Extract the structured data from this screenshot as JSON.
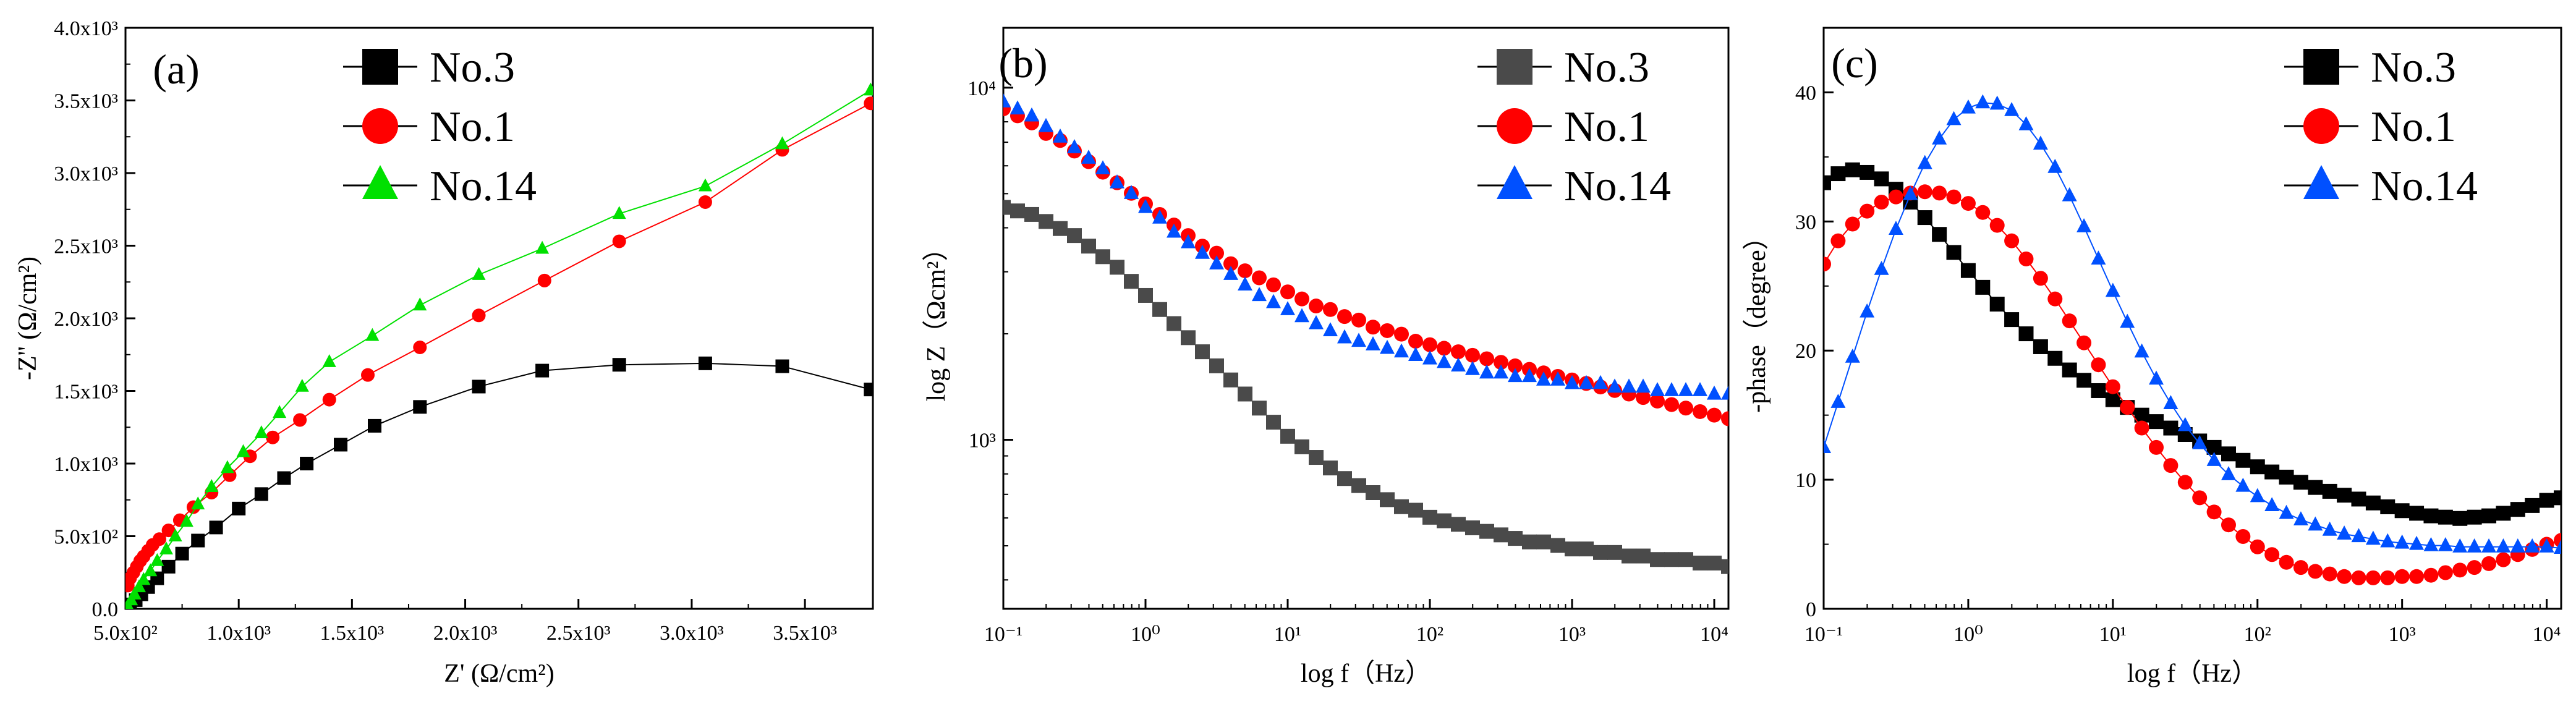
{
  "colors": {
    "No.3": "#000000",
    "No.3_b": "#4a4a4a",
    "No.1": "#ff0000",
    "No.14": "#00e000",
    "No.14_b": "#0050ff"
  },
  "chart_data": [
    {
      "panel": "(a)",
      "type": "line",
      "xlabel": "Z' (Ω/cm²)",
      "ylabel": "-Z'' (Ω/cm²)",
      "xlim": [
        500,
        3800
      ],
      "ylim": [
        0,
        4000
      ],
      "xscale": "linear",
      "yscale": "linear",
      "xticks": [
        500,
        1000,
        1500,
        2000,
        2500,
        3000,
        3500
      ],
      "xtick_labels": [
        "5.0x10²",
        "1.0x10³",
        "1.5x10³",
        "2.0x10³",
        "2.5x10³",
        "3.0x10³",
        "3.5x10³"
      ],
      "yticks": [
        0,
        500,
        1000,
        1500,
        2000,
        2500,
        3000,
        3500,
        4000
      ],
      "ytick_labels": [
        "0.0",
        "5.0x10²",
        "1.0x10³",
        "1.5x10³",
        "2.0x10³",
        "2.5x10³",
        "3.0x10³",
        "3.5x10³",
        "4.0x10³"
      ],
      "legend": [
        "No.3",
        "No.1",
        "No.14"
      ],
      "series": [
        {
          "name": "No.3",
          "marker": "square",
          "color": "#000000",
          "points": [
            [
              520,
              30
            ],
            [
              545,
              60
            ],
            [
              570,
              100
            ],
            [
              600,
              150
            ],
            [
              640,
              210
            ],
            [
              690,
              290
            ],
            [
              750,
              380
            ],
            [
              820,
              470
            ],
            [
              900,
              560
            ],
            [
              1000,
              690
            ],
            [
              1100,
              790
            ],
            [
              1200,
              900
            ],
            [
              1300,
              1000
            ],
            [
              1450,
              1130
            ],
            [
              1600,
              1260
            ],
            [
              1800,
              1390
            ],
            [
              2060,
              1530
            ],
            [
              2340,
              1640
            ],
            [
              2680,
              1680
            ],
            [
              3060,
              1690
            ],
            [
              3400,
              1670
            ],
            [
              3790,
              1510
            ]
          ]
        },
        {
          "name": "No.1",
          "marker": "circle",
          "color": "#ff0000",
          "points": [
            [
              510,
              160
            ],
            [
              520,
              210
            ],
            [
              535,
              250
            ],
            [
              550,
              290
            ],
            [
              565,
              330
            ],
            [
              580,
              360
            ],
            [
              600,
              400
            ],
            [
              620,
              440
            ],
            [
              650,
              480
            ],
            [
              690,
              540
            ],
            [
              740,
              610
            ],
            [
              800,
              700
            ],
            [
              880,
              800
            ],
            [
              960,
              920
            ],
            [
              1050,
              1050
            ],
            [
              1150,
              1180
            ],
            [
              1270,
              1300
            ],
            [
              1400,
              1440
            ],
            [
              1570,
              1610
            ],
            [
              1800,
              1800
            ],
            [
              2060,
              2020
            ],
            [
              2350,
              2260
            ],
            [
              2680,
              2530
            ],
            [
              3060,
              2800
            ],
            [
              3400,
              3160
            ],
            [
              3790,
              3480
            ]
          ]
        },
        {
          "name": "No.14",
          "marker": "triangle",
          "color": "#00e000",
          "points": [
            [
              510,
              20
            ],
            [
              525,
              60
            ],
            [
              540,
              100
            ],
            [
              560,
              150
            ],
            [
              580,
              200
            ],
            [
              610,
              260
            ],
            [
              640,
              330
            ],
            [
              680,
              410
            ],
            [
              720,
              500
            ],
            [
              770,
              600
            ],
            [
              820,
              720
            ],
            [
              880,
              840
            ],
            [
              950,
              970
            ],
            [
              1020,
              1080
            ],
            [
              1100,
              1210
            ],
            [
              1180,
              1350
            ],
            [
              1280,
              1530
            ],
            [
              1400,
              1700
            ],
            [
              1590,
              1880
            ],
            [
              1800,
              2090
            ],
            [
              2060,
              2300
            ],
            [
              2340,
              2480
            ],
            [
              2680,
              2720
            ],
            [
              3060,
              2910
            ],
            [
              3400,
              3200
            ],
            [
              3790,
              3570
            ]
          ]
        }
      ]
    },
    {
      "panel": "(b)",
      "type": "scatter",
      "xlabel": "log f（Hz）",
      "ylabel": "log Z（Ωcm²）",
      "xscale": "log",
      "yscale": "log",
      "xlim_log10": [
        -1,
        4.1
      ],
      "ylim_log10": [
        2.52,
        4.17
      ],
      "xtick_exps": [
        -1,
        0,
        1,
        2,
        3,
        4
      ],
      "ytick_exps": [
        3,
        4
      ],
      "xtick_labels": [
        "10⁻¹",
        "10⁰",
        "10¹",
        "10²",
        "10³",
        "10⁴"
      ],
      "ytick_labels": [
        "10³",
        "10⁴"
      ],
      "legend": [
        "No.3",
        "No.1",
        "No.14"
      ],
      "series": [
        {
          "name": "No.3",
          "marker": "square",
          "color": "#4a4a4a",
          "logx": [
            -1.0,
            -0.9,
            -0.8,
            -0.7,
            -0.6,
            -0.5,
            -0.4,
            -0.3,
            -0.2,
            -0.1,
            0.0,
            0.1,
            0.2,
            0.3,
            0.4,
            0.5,
            0.6,
            0.7,
            0.8,
            0.9,
            1.0,
            1.1,
            1.2,
            1.3,
            1.4,
            1.5,
            1.6,
            1.7,
            1.8,
            1.9,
            2.0,
            2.1,
            2.2,
            2.3,
            2.4,
            2.5,
            2.6,
            2.7,
            2.8,
            2.9,
            3.0,
            3.1,
            3.2,
            3.3,
            3.4,
            3.5,
            3.6,
            3.7,
            3.8,
            3.9,
            4.0,
            4.1
          ],
          "logz": [
            3.66,
            3.65,
            3.64,
            3.62,
            3.6,
            3.58,
            3.55,
            3.52,
            3.49,
            3.45,
            3.41,
            3.37,
            3.33,
            3.29,
            3.25,
            3.21,
            3.17,
            3.13,
            3.09,
            3.05,
            3.01,
            2.98,
            2.95,
            2.92,
            2.89,
            2.87,
            2.85,
            2.83,
            2.81,
            2.8,
            2.78,
            2.77,
            2.76,
            2.75,
            2.74,
            2.73,
            2.72,
            2.71,
            2.71,
            2.7,
            2.69,
            2.69,
            2.68,
            2.68,
            2.67,
            2.67,
            2.66,
            2.66,
            2.66,
            2.65,
            2.65,
            2.64
          ]
        },
        {
          "name": "No.1",
          "marker": "circle",
          "color": "#ff0000",
          "logx": [
            -1.0,
            -0.9,
            -0.8,
            -0.7,
            -0.6,
            -0.5,
            -0.4,
            -0.3,
            -0.2,
            -0.1,
            0.0,
            0.1,
            0.2,
            0.3,
            0.4,
            0.5,
            0.6,
            0.7,
            0.8,
            0.9,
            1.0,
            1.1,
            1.2,
            1.3,
            1.4,
            1.5,
            1.6,
            1.7,
            1.8,
            1.9,
            2.0,
            2.1,
            2.2,
            2.3,
            2.4,
            2.5,
            2.6,
            2.7,
            2.8,
            2.9,
            3.0,
            3.1,
            3.2,
            3.3,
            3.4,
            3.5,
            3.6,
            3.7,
            3.8,
            3.9,
            4.0,
            4.1
          ],
          "logz": [
            3.94,
            3.92,
            3.9,
            3.87,
            3.85,
            3.82,
            3.79,
            3.76,
            3.73,
            3.7,
            3.67,
            3.64,
            3.61,
            3.58,
            3.55,
            3.53,
            3.5,
            3.48,
            3.46,
            3.44,
            3.42,
            3.4,
            3.38,
            3.37,
            3.35,
            3.34,
            3.32,
            3.31,
            3.3,
            3.28,
            3.27,
            3.26,
            3.25,
            3.24,
            3.23,
            3.22,
            3.21,
            3.2,
            3.19,
            3.18,
            3.17,
            3.16,
            3.15,
            3.14,
            3.13,
            3.12,
            3.11,
            3.1,
            3.09,
            3.08,
            3.07,
            3.06
          ]
        },
        {
          "name": "No.14",
          "marker": "triangle",
          "color": "#0050ff",
          "logx": [
            -1.0,
            -0.9,
            -0.8,
            -0.7,
            -0.6,
            -0.5,
            -0.4,
            -0.3,
            -0.2,
            -0.1,
            0.0,
            0.1,
            0.2,
            0.3,
            0.4,
            0.5,
            0.6,
            0.7,
            0.8,
            0.9,
            1.0,
            1.1,
            1.2,
            1.3,
            1.4,
            1.5,
            1.6,
            1.7,
            1.8,
            1.9,
            2.0,
            2.1,
            2.2,
            2.3,
            2.4,
            2.5,
            2.6,
            2.7,
            2.8,
            2.9,
            3.0,
            3.1,
            3.2,
            3.3,
            3.4,
            3.5,
            3.6,
            3.7,
            3.8,
            3.9,
            4.0,
            4.1
          ],
          "logz": [
            3.96,
            3.94,
            3.92,
            3.89,
            3.86,
            3.83,
            3.8,
            3.77,
            3.73,
            3.7,
            3.66,
            3.63,
            3.59,
            3.56,
            3.53,
            3.5,
            3.47,
            3.44,
            3.41,
            3.39,
            3.37,
            3.35,
            3.33,
            3.31,
            3.29,
            3.28,
            3.27,
            3.26,
            3.25,
            3.24,
            3.23,
            3.22,
            3.21,
            3.2,
            3.19,
            3.19,
            3.18,
            3.18,
            3.17,
            3.17,
            3.16,
            3.16,
            3.16,
            3.15,
            3.15,
            3.15,
            3.14,
            3.14,
            3.14,
            3.14,
            3.13,
            3.13
          ]
        }
      ]
    },
    {
      "panel": "(c)",
      "type": "scatter",
      "xlabel": "log f（Hz）",
      "ylabel": "-phase（degree）",
      "xscale": "log",
      "yscale": "linear",
      "xlim_log10": [
        -1,
        4.1
      ],
      "ylim": [
        0,
        45
      ],
      "xtick_exps": [
        -1,
        0,
        1,
        2,
        3,
        4
      ],
      "xtick_labels": [
        "10⁻¹",
        "10⁰",
        "10¹",
        "10²",
        "10³",
        "10⁴"
      ],
      "yticks": [
        0,
        10,
        20,
        30,
        40
      ],
      "ytick_labels": [
        "0",
        "10",
        "20",
        "30",
        "40"
      ],
      "legend": [
        "No.3",
        "No.1",
        "No.14"
      ],
      "series": [
        {
          "name": "No.3",
          "marker": "square",
          "color": "#000000",
          "logx": [
            -1.0,
            -0.9,
            -0.8,
            -0.7,
            -0.6,
            -0.5,
            -0.4,
            -0.3,
            -0.2,
            -0.1,
            0.0,
            0.1,
            0.2,
            0.3,
            0.4,
            0.5,
            0.6,
            0.7,
            0.8,
            0.9,
            1.0,
            1.1,
            1.2,
            1.3,
            1.4,
            1.5,
            1.6,
            1.7,
            1.8,
            1.9,
            2.0,
            2.1,
            2.2,
            2.3,
            2.4,
            2.5,
            2.6,
            2.7,
            2.8,
            2.9,
            3.0,
            3.1,
            3.2,
            3.3,
            3.4,
            3.5,
            3.6,
            3.7,
            3.8,
            3.9,
            4.0,
            4.1
          ],
          "phase": [
            33,
            33.7,
            34,
            33.8,
            33.3,
            32.5,
            31.5,
            30.3,
            29,
            27.6,
            26.2,
            24.9,
            23.6,
            22.4,
            21.3,
            20.3,
            19.4,
            18.5,
            17.7,
            16.9,
            16.2,
            15.6,
            15,
            14.5,
            14,
            13.5,
            13,
            12.5,
            12,
            11.5,
            11,
            10.6,
            10.2,
            9.8,
            9.4,
            9.1,
            8.8,
            8.5,
            8.2,
            7.9,
            7.6,
            7.4,
            7.2,
            7.1,
            7,
            7.1,
            7.2,
            7.4,
            7.7,
            8,
            8.4,
            8.6
          ]
        },
        {
          "name": "No.1",
          "marker": "circle",
          "color": "#ff0000",
          "logx": [
            -1.0,
            -0.9,
            -0.8,
            -0.7,
            -0.6,
            -0.5,
            -0.4,
            -0.3,
            -0.2,
            -0.1,
            0.0,
            0.1,
            0.2,
            0.3,
            0.4,
            0.5,
            0.6,
            0.7,
            0.8,
            0.9,
            1.0,
            1.1,
            1.2,
            1.3,
            1.4,
            1.5,
            1.6,
            1.7,
            1.8,
            1.9,
            2.0,
            2.1,
            2.2,
            2.3,
            2.4,
            2.5,
            2.6,
            2.7,
            2.8,
            2.9,
            3.0,
            3.1,
            3.2,
            3.3,
            3.4,
            3.5,
            3.6,
            3.7,
            3.8,
            3.9,
            4.0,
            4.1
          ],
          "phase": [
            26.7,
            28.5,
            29.8,
            30.8,
            31.5,
            31.9,
            32.2,
            32.3,
            32.2,
            31.9,
            31.4,
            30.7,
            29.7,
            28.5,
            27.1,
            25.6,
            24,
            22.3,
            20.6,
            18.9,
            17.2,
            15.6,
            14,
            12.5,
            11.1,
            9.8,
            8.6,
            7.5,
            6.5,
            5.6,
            4.8,
            4.2,
            3.6,
            3.2,
            2.9,
            2.7,
            2.5,
            2.4,
            2.4,
            2.4,
            2.5,
            2.5,
            2.6,
            2.8,
            3,
            3.2,
            3.5,
            3.8,
            4.2,
            4.6,
            5,
            5.3
          ]
        },
        {
          "name": "No.14",
          "marker": "triangle",
          "color": "#0050ff",
          "logx": [
            -1.0,
            -0.9,
            -0.8,
            -0.7,
            -0.6,
            -0.5,
            -0.4,
            -0.3,
            -0.2,
            -0.1,
            0.0,
            0.1,
            0.2,
            0.3,
            0.4,
            0.5,
            0.6,
            0.7,
            0.8,
            0.9,
            1.0,
            1.1,
            1.2,
            1.3,
            1.4,
            1.5,
            1.6,
            1.7,
            1.8,
            1.9,
            2.0,
            2.1,
            2.2,
            2.3,
            2.4,
            2.5,
            2.6,
            2.7,
            2.8,
            2.9,
            3.0,
            3.1,
            3.2,
            3.3,
            3.4,
            3.5,
            3.6,
            3.7,
            3.8,
            3.9,
            4.0,
            4.1
          ],
          "phase": [
            12.5,
            16,
            19.5,
            23,
            26.3,
            29.4,
            32.1,
            34.5,
            36.4,
            37.9,
            38.8,
            39.2,
            39.1,
            38.6,
            37.5,
            36,
            34.2,
            32,
            29.6,
            27.1,
            24.6,
            22.2,
            19.9,
            17.8,
            15.9,
            14.2,
            12.8,
            11.5,
            10.4,
            9.5,
            8.7,
            8,
            7.4,
            6.9,
            6.5,
            6.1,
            5.8,
            5.6,
            5.4,
            5.2,
            5.1,
            5,
            4.9,
            4.9,
            4.8,
            4.8,
            4.8,
            4.8,
            4.8,
            4.8,
            4.8,
            4.7
          ]
        }
      ]
    }
  ]
}
